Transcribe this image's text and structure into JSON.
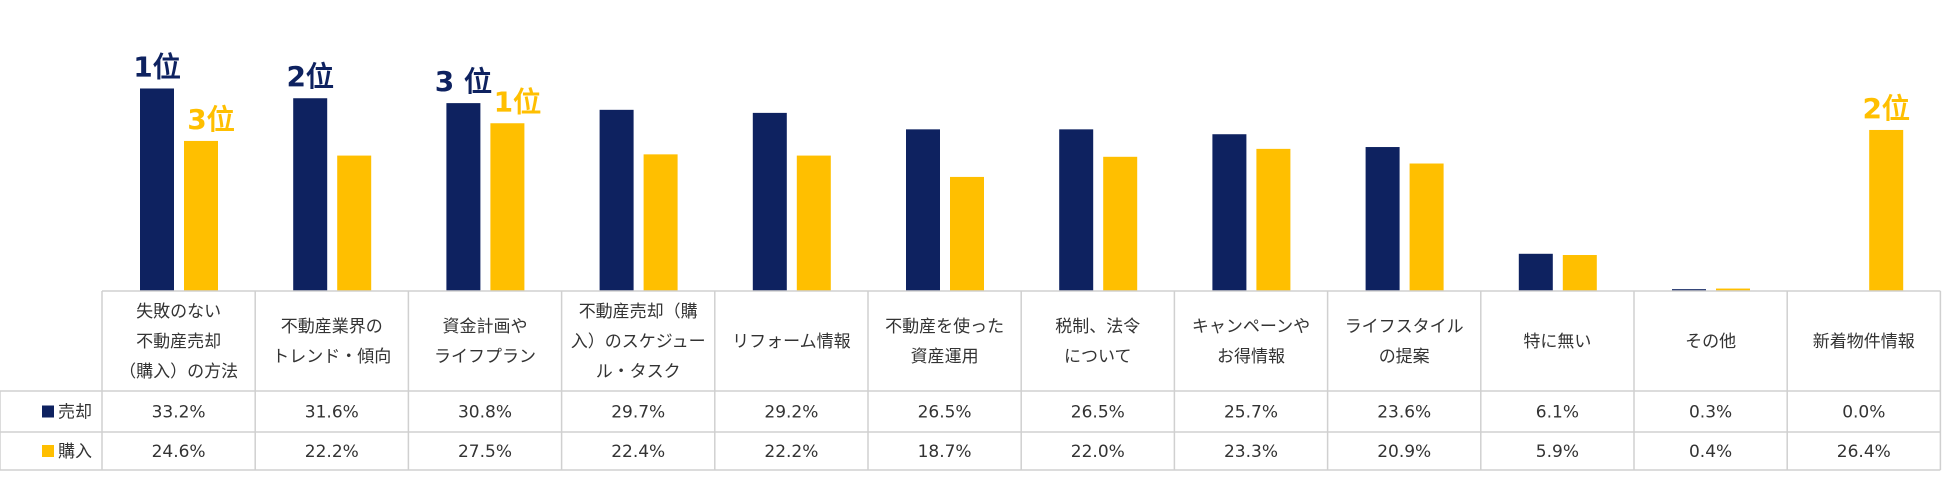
{
  "chart_data": {
    "type": "bar",
    "title": "",
    "xlabel": "",
    "ylabel": "",
    "ylim": [
      0,
      35
    ],
    "categories": [
      [
        "失敗のない",
        "不動産売却",
        "（購入）の方法"
      ],
      [
        "不動産業界の",
        "トレンド・傾向"
      ],
      [
        "資金計画や",
        "ライフプラン"
      ],
      [
        "不動産売却（購",
        "入）のスケジュー",
        "ル・タスク"
      ],
      [
        "リフォーム情報"
      ],
      [
        "不動産を使った",
        "資産運用"
      ],
      [
        "税制、法令",
        "について"
      ],
      [
        "キャンペーンや",
        "お得情報"
      ],
      [
        "ライフスタイル",
        "の提案"
      ],
      [
        "特に無い"
      ],
      [
        "その他"
      ],
      [
        "新着物件情報"
      ]
    ],
    "series": [
      {
        "name": "売却",
        "color": "#0e2260",
        "values": [
          33.2,
          31.6,
          30.8,
          29.7,
          29.2,
          26.5,
          26.5,
          25.7,
          23.6,
          6.1,
          0.3,
          0.0
        ],
        "labels": [
          "33.2%",
          "31.6%",
          "30.8%",
          "29.7%",
          "29.2%",
          "26.5%",
          "26.5%",
          "25.7%",
          "23.6%",
          "6.1%",
          "0.3%",
          "0.0%"
        ]
      },
      {
        "name": "購入",
        "color": "#ffbf00",
        "values": [
          24.6,
          22.2,
          27.5,
          22.4,
          22.2,
          18.7,
          22.0,
          23.3,
          20.9,
          5.9,
          0.4,
          26.4
        ],
        "labels": [
          "24.6%",
          "22.2%",
          "27.5%",
          "22.4%",
          "22.2%",
          "18.7%",
          "22.0%",
          "23.3%",
          "20.9%",
          "5.9%",
          "0.4%",
          "26.4%"
        ]
      }
    ],
    "annotations": [
      {
        "text": "1位",
        "series": 0,
        "category": 0
      },
      {
        "text": "2位",
        "series": 0,
        "category": 1
      },
      {
        "text": "3 位",
        "series": 0,
        "category": 2
      },
      {
        "text": "3位",
        "series": 1,
        "category": 0
      },
      {
        "text": "1位",
        "series": 1,
        "category": 2
      },
      {
        "text": "2位",
        "series": 1,
        "category": 11
      }
    ],
    "legend": "data-table"
  }
}
